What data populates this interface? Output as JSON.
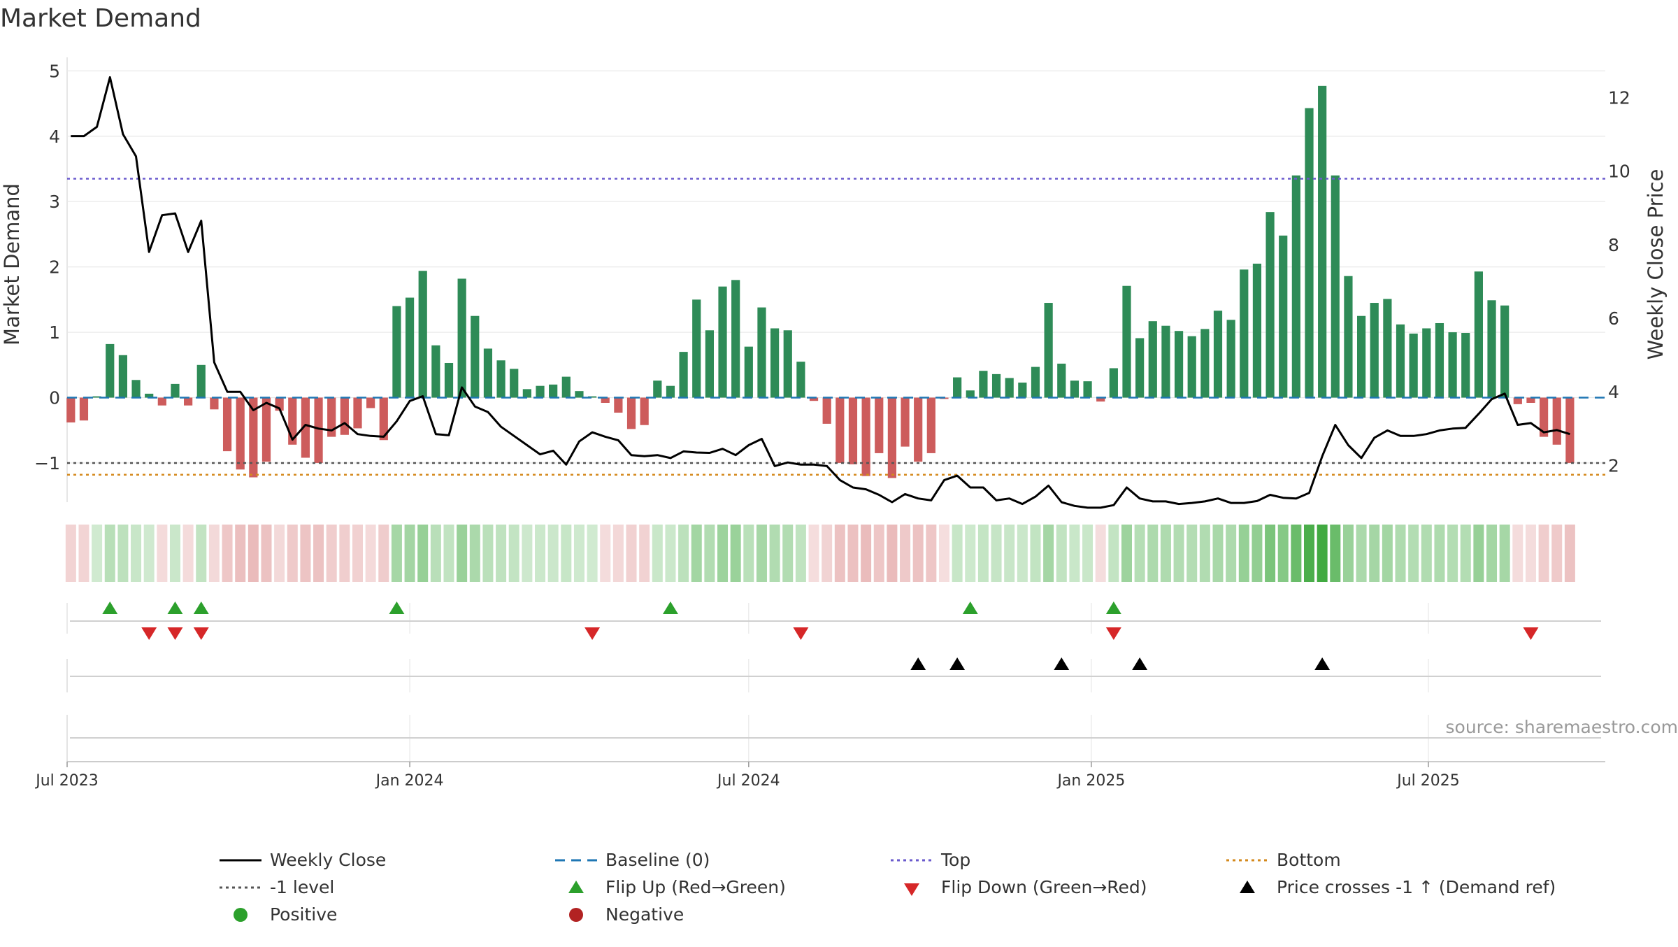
{
  "chart_data": {
    "type": "bar",
    "title": "Market Demand",
    "ylabel": "Market Demand",
    "y2label": "Weekly Close Price",
    "ylim": [
      -1.6,
      5.1
    ],
    "y2lim": [
      1.0,
      12.9
    ],
    "yticks": [
      -1,
      0,
      1,
      2,
      3,
      4,
      5
    ],
    "y2ticks": [
      2,
      4,
      6,
      8,
      10,
      12
    ],
    "x_start": "2023-07-01",
    "x_end": "2025-10-04",
    "xticks": [
      {
        "date": "2023-07-01",
        "label": "Jul 2023"
      },
      {
        "date": "2024-01-01",
        "label": "Jan 2024"
      },
      {
        "date": "2024-07-01",
        "label": "Jul 2024"
      },
      {
        "date": "2025-01-01",
        "label": "Jan 2025"
      },
      {
        "date": "2025-07-01",
        "label": "Jul 2025"
      }
    ],
    "first_week": "2023-07-03",
    "demand": [
      -0.38,
      -0.35,
      0.02,
      0.82,
      0.65,
      0.27,
      0.06,
      -0.12,
      0.21,
      -0.12,
      0.5,
      -0.18,
      -0.82,
      -1.1,
      -1.22,
      -0.98,
      -0.2,
      -0.72,
      -0.92,
      -1.0,
      -0.6,
      -0.57,
      -0.47,
      -0.16,
      -0.65,
      1.4,
      1.53,
      1.94,
      0.8,
      0.53,
      1.82,
      1.25,
      0.75,
      0.57,
      0.44,
      0.13,
      0.18,
      0.2,
      0.32,
      0.1,
      0.02,
      -0.08,
      -0.23,
      -0.48,
      -0.42,
      0.26,
      0.18,
      0.7,
      1.5,
      1.03,
      1.7,
      1.8,
      0.78,
      1.38,
      1.06,
      1.03,
      0.55,
      -0.05,
      -0.4,
      -1.0,
      -1.02,
      -1.2,
      -0.85,
      -1.23,
      -0.75,
      -0.98,
      -0.85,
      -0.02,
      0.31,
      0.11,
      0.41,
      0.36,
      0.3,
      0.23,
      0.47,
      1.45,
      0.52,
      0.26,
      0.25,
      -0.06,
      0.45,
      1.71,
      0.91,
      1.17,
      1.1,
      1.02,
      0.94,
      1.05,
      1.33,
      1.19,
      1.96,
      2.05,
      2.84,
      2.48,
      3.4,
      4.43,
      4.77,
      3.4,
      1.86,
      1.25,
      1.45,
      1.51,
      1.12,
      0.98,
      1.06,
      1.14,
      1.0,
      0.99,
      1.93,
      1.49,
      1.41,
      -0.1,
      -0.08,
      -0.6,
      -0.72,
      -1.0
    ],
    "close": [
      10.95,
      10.95,
      11.2,
      12.55,
      11.0,
      10.4,
      7.8,
      8.8,
      8.85,
      7.8,
      8.65,
      4.8,
      4.0,
      4.0,
      3.5,
      3.7,
      3.55,
      2.7,
      3.1,
      3.0,
      2.95,
      3.15,
      2.85,
      2.8,
      2.78,
      3.2,
      3.75,
      3.88,
      2.85,
      2.82,
      4.12,
      3.6,
      3.45,
      3.05,
      2.8,
      2.55,
      2.3,
      2.4,
      2.02,
      2.65,
      2.9,
      2.78,
      2.68,
      2.28,
      2.25,
      2.28,
      2.2,
      2.38,
      2.35,
      2.34,
      2.45,
      2.28,
      2.55,
      2.72,
      1.98,
      2.08,
      2.02,
      2.02,
      1.98,
      1.6,
      1.4,
      1.35,
      1.2,
      1.0,
      1.22,
      1.1,
      1.05,
      1.6,
      1.72,
      1.4,
      1.4,
      1.05,
      1.1,
      0.95,
      1.15,
      1.45,
      1.0,
      0.9,
      0.85,
      0.85,
      0.92,
      1.4,
      1.1,
      1.02,
      1.02,
      0.95,
      0.98,
      1.02,
      1.1,
      0.98,
      0.98,
      1.03,
      1.2,
      1.12,
      1.1,
      1.25,
      2.25,
      3.1,
      2.55,
      2.2,
      2.75,
      2.95,
      2.8,
      2.8,
      2.85,
      2.95,
      3.0,
      3.02,
      3.4,
      3.8,
      3.95,
      3.1,
      3.15,
      2.9,
      2.96,
      2.85
    ],
    "top_level": 3.35,
    "bottom_level": -1.18,
    "minus_one_level": -1.0,
    "flip_up_dates": [
      "2023-07-24",
      "2023-08-28",
      "2023-09-11",
      "2023-12-25",
      "2024-05-20",
      "2024-10-28",
      "2025-01-13"
    ],
    "flip_down_dates": [
      "2023-08-14",
      "2023-08-28",
      "2023-09-11",
      "2024-04-08",
      "2024-07-29",
      "2025-01-13",
      "2025-08-25"
    ],
    "price_cross_dates": [
      "2024-09-30",
      "2024-10-21",
      "2024-12-16",
      "2025-01-27",
      "2025-05-05"
    ],
    "colors": {
      "positive": "#2e8b57",
      "negative": "#cd5c5c",
      "close": "#000000",
      "baseline": "#1f77b4",
      "top": "#6a5acd",
      "bottom": "#d4891c",
      "minus_one": "#555555",
      "flip_up": "#2ca02c",
      "flip_down": "#d62728",
      "cross": "#000000",
      "legend_positive": "#2ca02c",
      "legend_negative": "#b22222",
      "grid": "#e8e8e8",
      "text": "#333333"
    },
    "legend": [
      {
        "label": "Weekly Close",
        "kind": "line",
        "style": "solid",
        "color": "#000000"
      },
      {
        "label": "Baseline (0)",
        "kind": "line",
        "style": "dash",
        "color": "#1f77b4"
      },
      {
        "label": "Top",
        "kind": "line",
        "style": "dot",
        "color": "#6a5acd"
      },
      {
        "label": "Bottom",
        "kind": "line",
        "style": "dot",
        "color": "#d4891c"
      },
      {
        "label": "-1 level",
        "kind": "line",
        "style": "dot",
        "color": "#555555"
      },
      {
        "label": "Flip Up (Red→Green)",
        "kind": "tri-up",
        "color": "#2ca02c"
      },
      {
        "label": "Flip Down (Green→Red)",
        "kind": "tri-down",
        "color": "#d62728"
      },
      {
        "label": "Price crosses -1 ↑ (Demand ref)",
        "kind": "tri-up",
        "color": "#000000"
      },
      {
        "label": "Positive",
        "kind": "dot",
        "color": "#2ca02c"
      },
      {
        "label": "Negative",
        "kind": "dot",
        "color": "#b22222"
      }
    ],
    "legend_placement": "bottom",
    "source": "source: sharemaestro.com"
  }
}
